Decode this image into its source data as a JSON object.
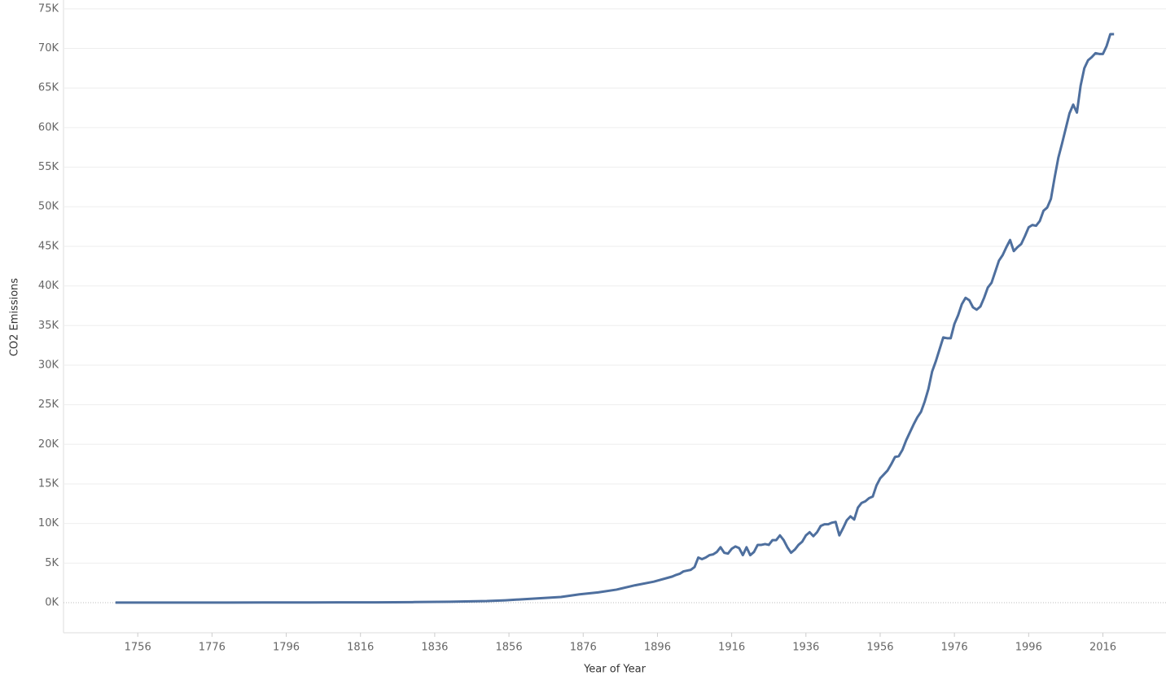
{
  "chart_data": {
    "type": "line",
    "y_label": "CO2 Emissions",
    "x_label": "Year of Year",
    "x": [
      1750,
      1760,
      1770,
      1780,
      1790,
      1800,
      1810,
      1820,
      1830,
      1840,
      1850,
      1855,
      1860,
      1865,
      1870,
      1875,
      1880,
      1885,
      1890,
      1895,
      1900,
      1901,
      1902,
      1903,
      1904,
      1905,
      1906,
      1907,
      1908,
      1909,
      1910,
      1911,
      1912,
      1913,
      1914,
      1915,
      1916,
      1917,
      1918,
      1919,
      1920,
      1921,
      1922,
      1923,
      1924,
      1925,
      1926,
      1927,
      1928,
      1929,
      1930,
      1931,
      1932,
      1933,
      1934,
      1935,
      1936,
      1937,
      1938,
      1939,
      1940,
      1941,
      1942,
      1943,
      1944,
      1945,
      1946,
      1947,
      1948,
      1949,
      1950,
      1951,
      1952,
      1953,
      1954,
      1955,
      1956,
      1957,
      1958,
      1959,
      1960,
      1961,
      1962,
      1963,
      1964,
      1965,
      1966,
      1967,
      1968,
      1969,
      1970,
      1971,
      1972,
      1973,
      1974,
      1975,
      1976,
      1977,
      1978,
      1979,
      1980,
      1981,
      1982,
      1983,
      1984,
      1985,
      1986,
      1987,
      1988,
      1989,
      1990,
      1991,
      1992,
      1993,
      1994,
      1995,
      1996,
      1997,
      1998,
      1999,
      2000,
      2001,
      2002,
      2003,
      2004,
      2005,
      2006,
      2007,
      2008,
      2009,
      2010,
      2011,
      2012,
      2013,
      2014,
      2015,
      2016,
      2017,
      2018,
      2019
    ],
    "series": [
      {
        "name": "CO2 Emissions",
        "color": "#4e6f9e",
        "values": [
          9,
          10,
          11,
          15,
          20,
          28,
          35,
          45,
          70,
          110,
          200,
          300,
          440,
          580,
          720,
          1050,
          1300,
          1650,
          2200,
          2650,
          3300,
          3500,
          3650,
          3950,
          4050,
          4150,
          4500,
          5700,
          5500,
          5700,
          6000,
          6100,
          6400,
          7000,
          6300,
          6200,
          6800,
          7100,
          6900,
          6000,
          7000,
          6000,
          6400,
          7300,
          7300,
          7400,
          7300,
          7900,
          7900,
          8500,
          7900,
          7000,
          6300,
          6700,
          7300,
          7700,
          8500,
          8900,
          8400,
          8900,
          9700,
          9900,
          9900,
          10100,
          10200,
          8500,
          9400,
          10400,
          10900,
          10500,
          12000,
          12600,
          12800,
          13200,
          13400,
          14800,
          15700,
          16200,
          16700,
          17500,
          18400,
          18500,
          19300,
          20500,
          21500,
          22500,
          23400,
          24100,
          25400,
          27000,
          29200,
          30500,
          32000,
          33500,
          33400,
          33400,
          35200,
          36300,
          37700,
          38500,
          38200,
          37300,
          37000,
          37400,
          38500,
          39800,
          40400,
          41800,
          43200,
          43900,
          44900,
          45800,
          44400,
          44900,
          45300,
          46300,
          47400,
          47700,
          47600,
          48200,
          49500,
          49900,
          51000,
          53700,
          56200,
          58000,
          59900,
          61800,
          62900,
          61900,
          65300,
          67500,
          68500,
          68900,
          69400,
          69300,
          69300,
          70300,
          71800,
          71800
        ]
      }
    ],
    "xlim": [
      1736,
      2033
    ],
    "xticks": [
      1756,
      1776,
      1796,
      1816,
      1836,
      1856,
      1876,
      1896,
      1916,
      1936,
      1956,
      1976,
      1996,
      2016
    ],
    "ylim": [
      -3800,
      75600
    ],
    "yticks": [
      {
        "value": 0,
        "label": "0K"
      },
      {
        "value": 5000,
        "label": "5K"
      },
      {
        "value": 10000,
        "label": "10K"
      },
      {
        "value": 15000,
        "label": "15K"
      },
      {
        "value": 20000,
        "label": "20K"
      },
      {
        "value": 25000,
        "label": "25K"
      },
      {
        "value": 30000,
        "label": "30K"
      },
      {
        "value": 35000,
        "label": "35K"
      },
      {
        "value": 40000,
        "label": "40K"
      },
      {
        "value": 45000,
        "label": "45K"
      },
      {
        "value": 50000,
        "label": "50K"
      },
      {
        "value": 55000,
        "label": "55K"
      },
      {
        "value": 60000,
        "label": "60K"
      },
      {
        "value": 65000,
        "label": "65K"
      },
      {
        "value": 70000,
        "label": "70K"
      },
      {
        "value": 75000,
        "label": "75K"
      }
    ],
    "grid": true
  }
}
